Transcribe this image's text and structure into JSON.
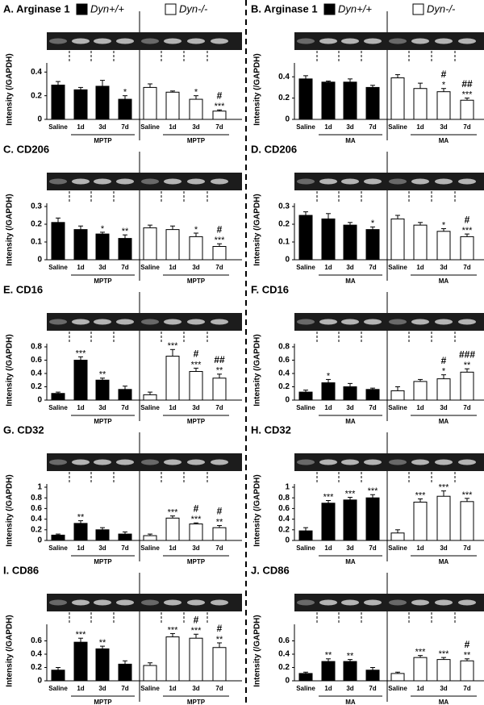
{
  "chart_data": [
    {
      "type": "bar",
      "title": "A. Arginase 1",
      "ylabel": "Intensity (/GAPDH)",
      "treatment": "MPTP",
      "legend": true,
      "categories": [
        "Saline",
        "1d",
        "3d",
        "7d"
      ],
      "ylim": [
        0,
        0.45
      ],
      "yticks": [
        0,
        0.2,
        0.4
      ],
      "series": [
        {
          "name": "Dyn+/+",
          "color": "#000000",
          "values": [
            0.29,
            0.25,
            0.28,
            0.17
          ],
          "errors": [
            0.03,
            0.02,
            0.05,
            0.03
          ],
          "stars": [
            null,
            null,
            null,
            "*"
          ]
        },
        {
          "name": "Dyn-/-",
          "color": "#ffffff",
          "values": [
            0.27,
            0.23,
            0.17,
            0.07
          ],
          "errors": [
            0.03,
            0.01,
            0.03,
            0.01
          ],
          "stars": [
            null,
            null,
            "*",
            "***"
          ],
          "hashes": [
            null,
            null,
            null,
            "#"
          ]
        }
      ]
    },
    {
      "type": "bar",
      "title": "B. Arginase 1",
      "ylabel": "Intensity (/GAPDH)",
      "treatment": "MA",
      "legend": true,
      "categories": [
        "Saline",
        "1d",
        "3d",
        "7d"
      ],
      "ylim": [
        0,
        0.5
      ],
      "yticks": [
        0,
        0.2,
        0.4
      ],
      "series": [
        {
          "name": "Dyn+/+",
          "color": "#000000",
          "values": [
            0.38,
            0.35,
            0.35,
            0.3
          ],
          "errors": [
            0.03,
            0.01,
            0.03,
            0.02
          ],
          "stars": [
            null,
            null,
            null,
            null
          ]
        },
        {
          "name": "Dyn-/-",
          "color": "#ffffff",
          "values": [
            0.39,
            0.29,
            0.26,
            0.18
          ],
          "errors": [
            0.03,
            0.05,
            0.03,
            0.02
          ],
          "stars": [
            null,
            null,
            "*",
            "***"
          ],
          "hashes": [
            null,
            null,
            "#",
            "##"
          ]
        }
      ]
    },
    {
      "type": "bar",
      "title": "C. CD206",
      "ylabel": "Intensity (/GAPDH)",
      "treatment": "MPTP",
      "legend": false,
      "categories": [
        "Saline",
        "1d",
        "3d",
        "7d"
      ],
      "ylim": [
        0,
        0.3
      ],
      "yticks": [
        0,
        0.1,
        0.2,
        0.3
      ],
      "series": [
        {
          "color": "#000000",
          "values": [
            0.21,
            0.17,
            0.145,
            0.12
          ],
          "errors": [
            0.025,
            0.02,
            0.01,
            0.02
          ],
          "stars": [
            null,
            null,
            "*",
            "**"
          ]
        },
        {
          "color": "#ffffff",
          "values": [
            0.18,
            0.17,
            0.13,
            0.075
          ],
          "errors": [
            0.015,
            0.02,
            0.02,
            0.015
          ],
          "stars": [
            null,
            null,
            "*",
            "***"
          ],
          "hashes": [
            null,
            null,
            null,
            "#"
          ]
        }
      ]
    },
    {
      "type": "bar",
      "title": "D. CD206",
      "ylabel": "Intensity (/GAPDH)",
      "treatment": "MA",
      "legend": false,
      "categories": [
        "Saline",
        "1d",
        "3d",
        "7d"
      ],
      "ylim": [
        0,
        0.3
      ],
      "yticks": [
        0,
        0.1,
        0.2,
        0.3
      ],
      "series": [
        {
          "color": "#000000",
          "values": [
            0.25,
            0.23,
            0.195,
            0.17
          ],
          "errors": [
            0.02,
            0.03,
            0.015,
            0.015
          ],
          "stars": [
            null,
            null,
            null,
            "*"
          ]
        },
        {
          "color": "#ffffff",
          "values": [
            0.23,
            0.195,
            0.16,
            0.13
          ],
          "errors": [
            0.02,
            0.015,
            0.015,
            0.015
          ],
          "stars": [
            null,
            null,
            "*",
            "***"
          ],
          "hashes": [
            null,
            null,
            null,
            "#"
          ]
        }
      ]
    },
    {
      "type": "bar",
      "title": "E. CD16",
      "ylabel": "Intensity (/GAPDH)",
      "treatment": "MPTP",
      "legend": false,
      "categories": [
        "Saline",
        "1d",
        "3d",
        "7d"
      ],
      "ylim": [
        0,
        0.8
      ],
      "yticks": [
        0,
        0.2,
        0.4,
        0.6,
        0.8
      ],
      "series": [
        {
          "color": "#000000",
          "values": [
            0.1,
            0.6,
            0.3,
            0.16
          ],
          "errors": [
            0.02,
            0.05,
            0.03,
            0.05
          ],
          "stars": [
            null,
            "***",
            "**",
            null
          ]
        },
        {
          "color": "#ffffff",
          "values": [
            0.08,
            0.66,
            0.43,
            0.33
          ],
          "errors": [
            0.04,
            0.1,
            0.05,
            0.06
          ],
          "stars": [
            null,
            "***",
            "***",
            "**"
          ],
          "hashes": [
            null,
            null,
            "#",
            "##"
          ]
        }
      ]
    },
    {
      "type": "bar",
      "title": "F. CD16",
      "ylabel": "Intensity (/GAPDH)",
      "treatment": "MA",
      "legend": false,
      "categories": [
        "Saline",
        "1d",
        "3d",
        "7d"
      ],
      "ylim": [
        0,
        0.8
      ],
      "yticks": [
        0,
        0.2,
        0.4,
        0.6,
        0.8
      ],
      "series": [
        {
          "color": "#000000",
          "values": [
            0.12,
            0.26,
            0.2,
            0.16
          ],
          "errors": [
            0.03,
            0.05,
            0.05,
            0.02
          ],
          "stars": [
            null,
            "*",
            null,
            null
          ]
        },
        {
          "color": "#ffffff",
          "values": [
            0.14,
            0.28,
            0.32,
            0.42
          ],
          "errors": [
            0.06,
            0.03,
            0.06,
            0.05
          ],
          "stars": [
            null,
            null,
            "*",
            "**"
          ],
          "hashes": [
            null,
            null,
            "#",
            "###"
          ]
        }
      ]
    },
    {
      "type": "bar",
      "title": "G. CD32",
      "ylabel": "Intensity (/GAPDH)",
      "treatment": "MPTP",
      "legend": false,
      "categories": [
        "Saline",
        "1d",
        "3d",
        "7d"
      ],
      "ylim": [
        0,
        1
      ],
      "yticks": [
        0,
        0.2,
        0.4,
        0.6,
        0.8,
        1
      ],
      "series": [
        {
          "color": "#000000",
          "values": [
            0.1,
            0.32,
            0.2,
            0.12
          ],
          "errors": [
            0.02,
            0.05,
            0.04,
            0.04
          ],
          "stars": [
            null,
            "**",
            null,
            null
          ]
        },
        {
          "color": "#ffffff",
          "values": [
            0.09,
            0.42,
            0.31,
            0.24
          ],
          "errors": [
            0.03,
            0.04,
            0.02,
            0.04
          ],
          "stars": [
            null,
            "***",
            "***",
            "**"
          ],
          "hashes": [
            null,
            null,
            "#",
            "#"
          ]
        }
      ]
    },
    {
      "type": "bar",
      "title": "H. CD32",
      "ylabel": "Intensity (/GAPDH)",
      "treatment": "MA",
      "legend": false,
      "categories": [
        "Saline",
        "1d",
        "3d",
        "7d"
      ],
      "ylim": [
        0,
        1
      ],
      "yticks": [
        0,
        0.2,
        0.4,
        0.6,
        0.8,
        1
      ],
      "series": [
        {
          "color": "#000000",
          "values": [
            0.18,
            0.7,
            0.76,
            0.8
          ],
          "errors": [
            0.06,
            0.05,
            0.05,
            0.06
          ],
          "stars": [
            null,
            "***",
            "***",
            "***"
          ]
        },
        {
          "color": "#ffffff",
          "values": [
            0.14,
            0.72,
            0.83,
            0.73
          ],
          "errors": [
            0.06,
            0.06,
            0.1,
            0.06
          ],
          "stars": [
            null,
            "***",
            "***",
            "***"
          ]
        }
      ]
    },
    {
      "type": "bar",
      "title": "I. CD86",
      "ylabel": "Intensity (/GAPDH)",
      "treatment": "MPTP",
      "legend": false,
      "categories": [
        "Saline",
        "1d",
        "3d",
        "7d"
      ],
      "ylim": [
        0,
        0.8
      ],
      "yticks": [
        0,
        0.2,
        0.4,
        0.6
      ],
      "series": [
        {
          "color": "#000000",
          "values": [
            0.16,
            0.58,
            0.48,
            0.25
          ],
          "errors": [
            0.04,
            0.06,
            0.04,
            0.05
          ],
          "stars": [
            null,
            "***",
            "**",
            null
          ]
        },
        {
          "color": "#ffffff",
          "values": [
            0.23,
            0.66,
            0.64,
            0.5
          ],
          "errors": [
            0.04,
            0.05,
            0.06,
            0.07
          ],
          "stars": [
            null,
            "***",
            "***",
            "**"
          ],
          "hashes": [
            null,
            null,
            "#",
            "#"
          ]
        }
      ]
    },
    {
      "type": "bar",
      "title": "J. CD86",
      "ylabel": "Intensity (/GAPDH)",
      "treatment": "MA",
      "legend": false,
      "categories": [
        "Saline",
        "1d",
        "3d",
        "7d"
      ],
      "ylim": [
        0,
        0.8
      ],
      "yticks": [
        0,
        0.2,
        0.4,
        0.6
      ],
      "series": [
        {
          "color": "#000000",
          "values": [
            0.11,
            0.29,
            0.29,
            0.16
          ],
          "errors": [
            0.02,
            0.04,
            0.03,
            0.04
          ],
          "stars": [
            null,
            "**",
            "**",
            null
          ]
        },
        {
          "color": "#ffffff",
          "values": [
            0.11,
            0.35,
            0.32,
            0.3
          ],
          "errors": [
            0.02,
            0.03,
            0.03,
            0.03
          ],
          "stars": [
            null,
            "***",
            "***",
            "**"
          ],
          "hashes": [
            null,
            null,
            null,
            "#"
          ]
        }
      ]
    }
  ]
}
